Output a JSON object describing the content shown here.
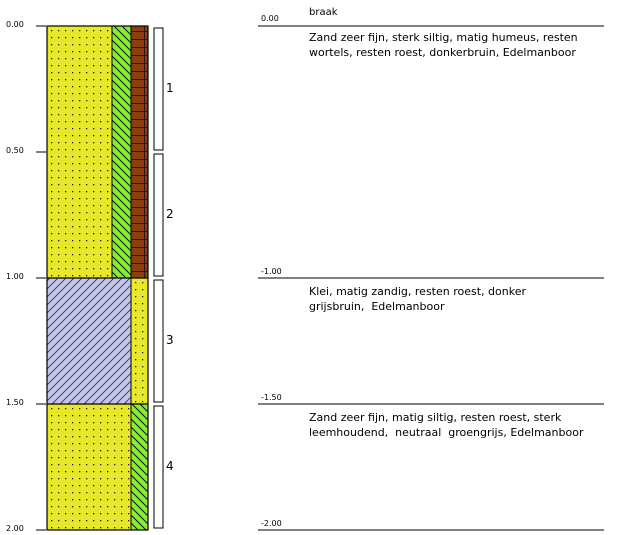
{
  "depth_axis": {
    "ticks": [
      "0.00",
      "0.50",
      "1.00",
      "1.50",
      "2.00"
    ]
  },
  "column": {
    "layers": [
      {
        "from": 0.0,
        "to": 1.0,
        "pattern": "sand-dots",
        "strips": [
          "clay-hatch-green",
          "humus-brown"
        ]
      },
      {
        "from": 1.0,
        "to": 1.5,
        "pattern": "clay-hatch-lavender",
        "strips": [
          "sand-dots"
        ]
      },
      {
        "from": 1.5,
        "to": 2.0,
        "pattern": "sand-dots",
        "strips": [
          "clay-hatch-green"
        ]
      }
    ],
    "colors": {
      "sand": "#e8e82a",
      "clay_lavender": "#c4c4ec",
      "silt_green": "#86ee2a",
      "humus_brown": "#8b3e10"
    }
  },
  "samples": [
    {
      "label": "1",
      "from": 0.0,
      "to": 0.5
    },
    {
      "label": "2",
      "from": 0.5,
      "to": 1.0
    },
    {
      "label": "3",
      "from": 1.0,
      "to": 1.5
    },
    {
      "label": "4",
      "from": 1.5,
      "to": 2.0
    }
  ],
  "surface": {
    "label": "0.00",
    "text": "braak"
  },
  "descriptions": [
    {
      "depth": 0.0,
      "text": "Zand zeer fijn, sterk siltig, matig humeus, resten\nwortels, resten roest, donkerbruin, Edelmanboor"
    },
    {
      "depth": -1.0,
      "label": "-1.00",
      "text": "Klei, matig zandig, resten roest, donker\ngrijsbruin,  Edelmanboor"
    },
    {
      "depth": -1.5,
      "label": "-1.50",
      "text": "Zand zeer fijn, matig siltig, resten roest, sterk\nleemhoudend,  neutraal  groengrijs, Edelmanboor"
    },
    {
      "depth": -2.0,
      "label": "-2.00",
      "text": ""
    }
  ]
}
